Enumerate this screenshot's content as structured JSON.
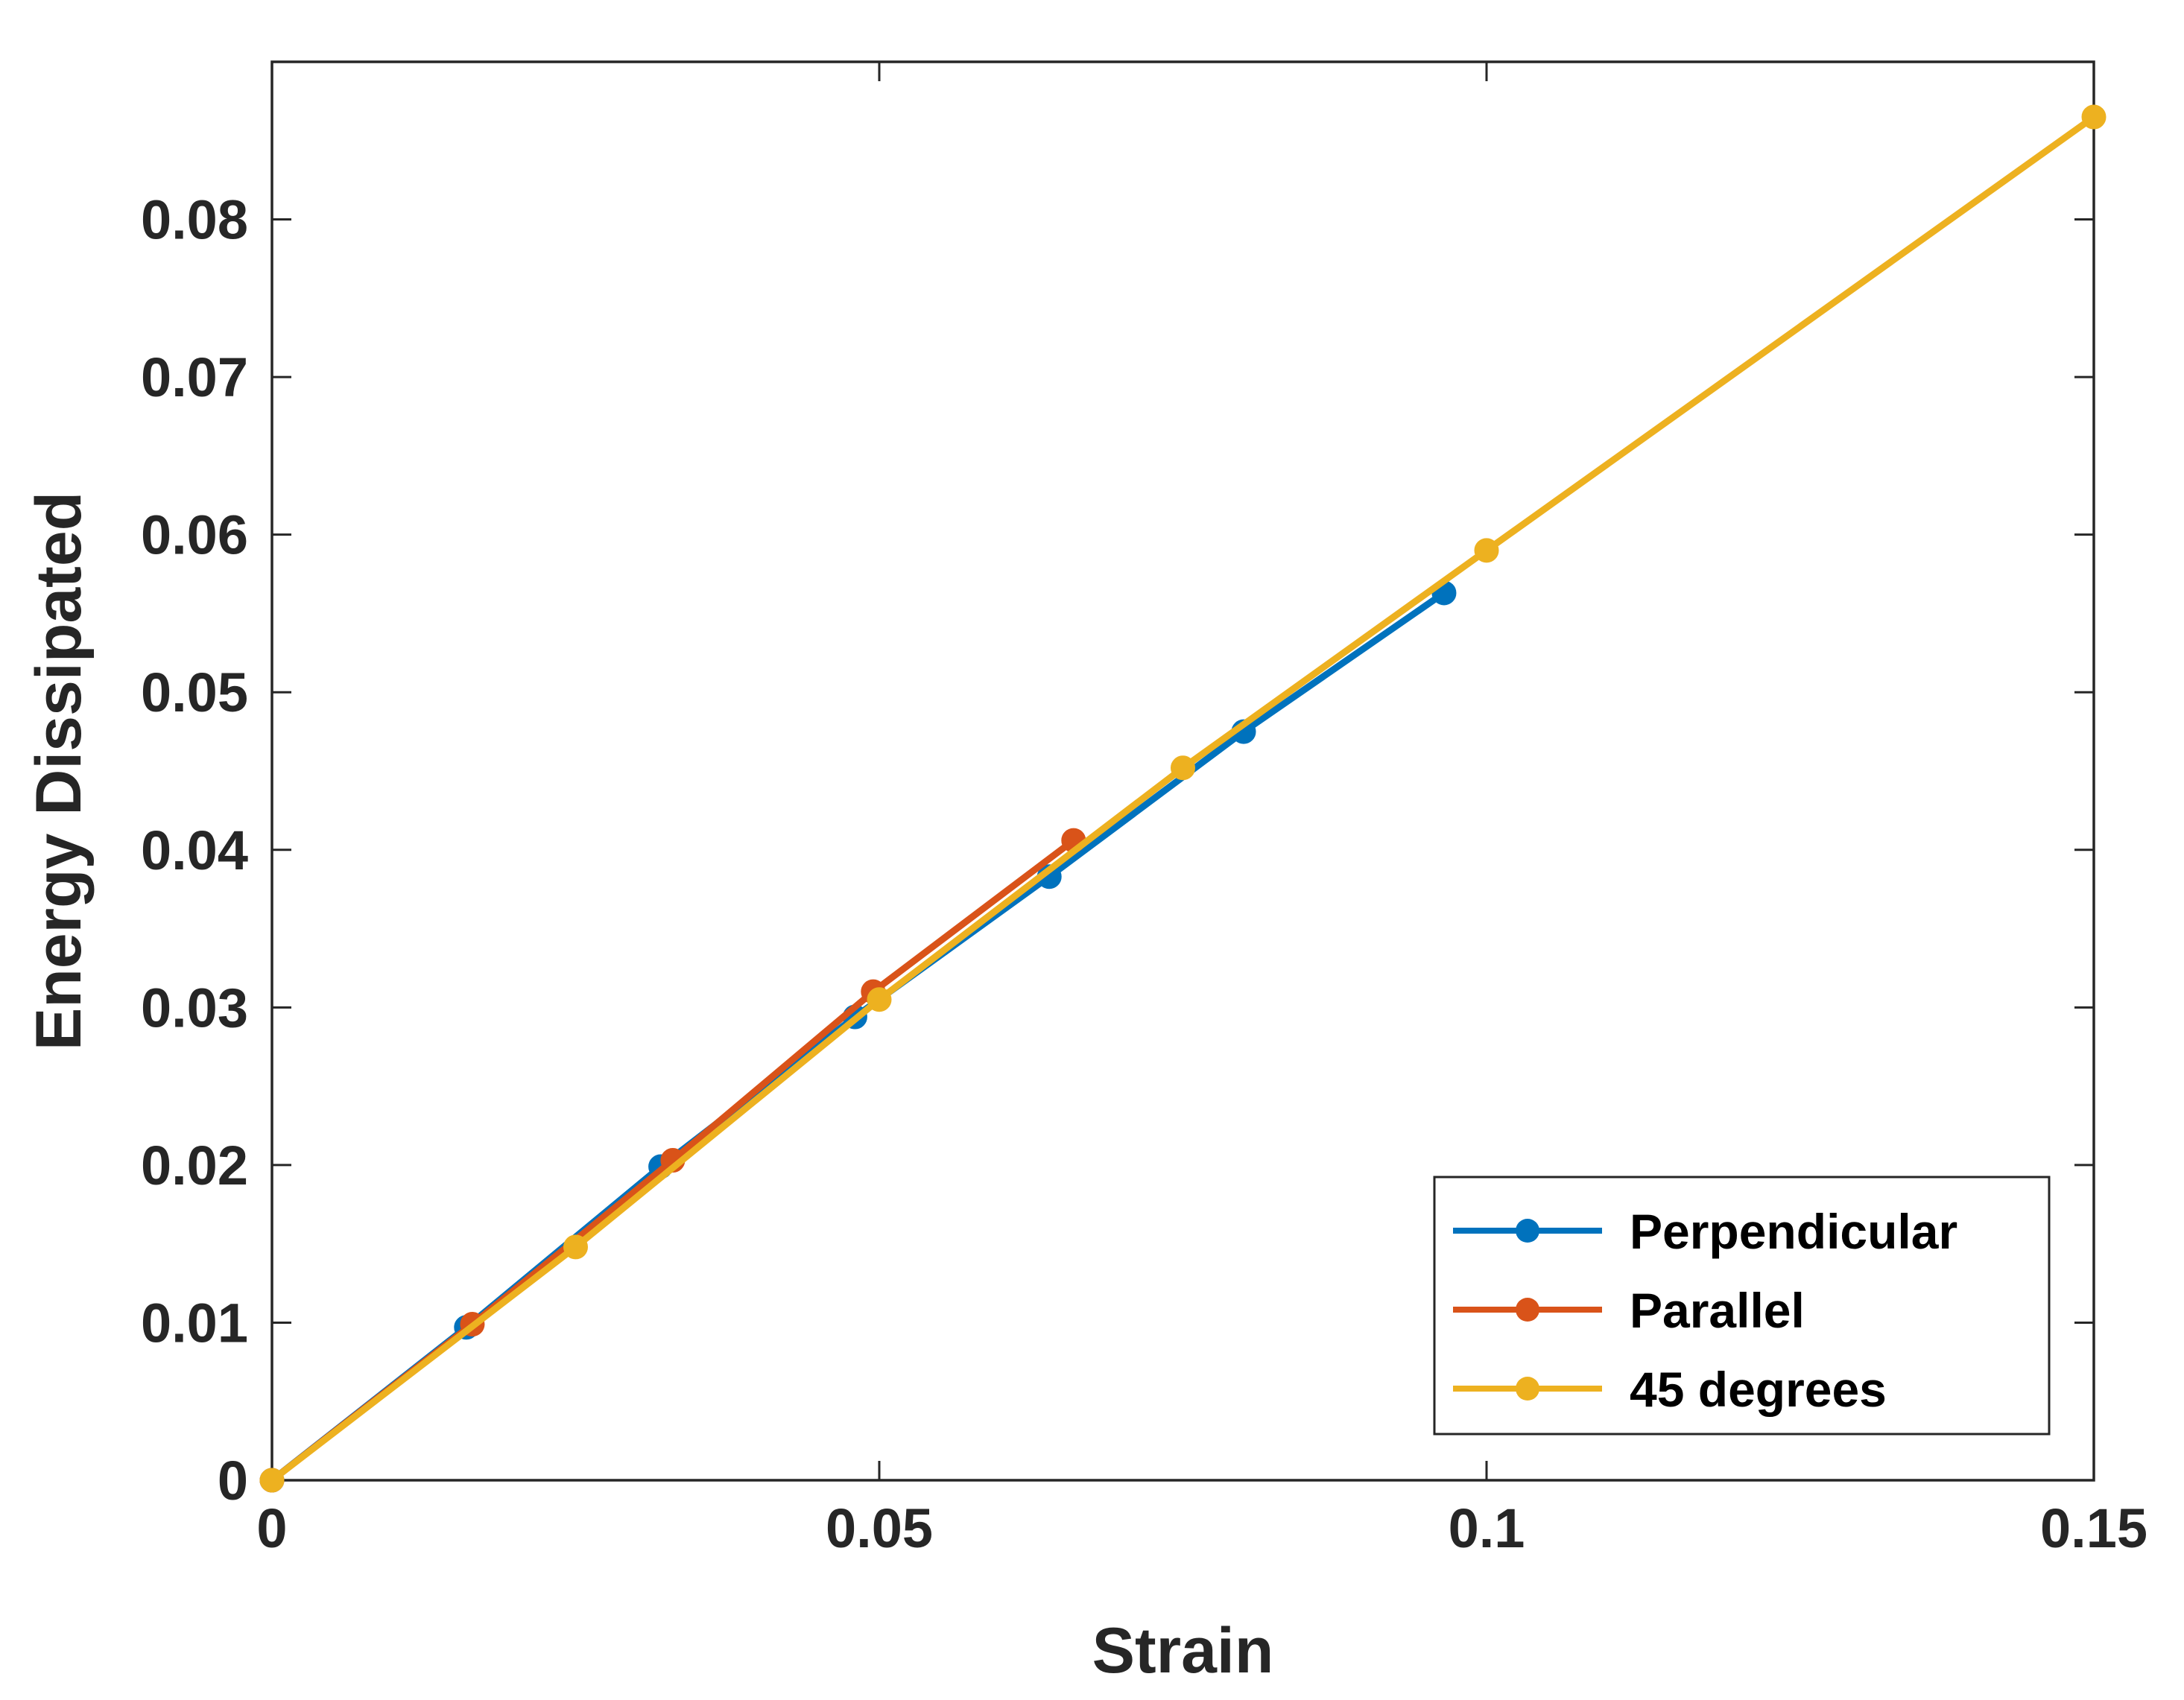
{
  "chart_data": {
    "type": "line",
    "title": "",
    "xlabel": "Strain",
    "ylabel": "Energy Dissipated",
    "xlim": [
      0,
      0.15
    ],
    "ylim": [
      0,
      0.09
    ],
    "xticks": [
      0,
      0.05,
      0.1,
      0.15
    ],
    "xtick_labels": [
      "0",
      "0.05",
      "0.1",
      "0.15"
    ],
    "yticks": [
      0,
      0.01,
      0.02,
      0.03,
      0.04,
      0.05,
      0.06,
      0.07,
      0.08
    ],
    "ytick_labels": [
      "0",
      "0.01",
      "0.02",
      "0.03",
      "0.04",
      "0.05",
      "0.06",
      "0.07",
      "0.08"
    ],
    "grid": false,
    "legend_position": "bottom-right",
    "series": [
      {
        "name": "Perpendicular",
        "color": "#0072BD",
        "marker": "circle",
        "x": [
          0,
          0.016,
          0.032,
          0.048,
          0.064,
          0.08,
          0.0965
        ],
        "y": [
          0,
          0.0097,
          0.0199,
          0.0294,
          0.0383,
          0.0475,
          0.0563
        ]
      },
      {
        "name": "Parallel",
        "color": "#D95319",
        "marker": "circle",
        "x": [
          0,
          0.0165,
          0.033,
          0.0495,
          0.066
        ],
        "y": [
          0,
          0.0099,
          0.0203,
          0.031,
          0.0406
        ]
      },
      {
        "name": "45 degrees",
        "color": "#EDB120",
        "marker": "circle",
        "x": [
          0,
          0.025,
          0.05,
          0.075,
          0.1,
          0.15
        ],
        "y": [
          0,
          0.0148,
          0.0305,
          0.0452,
          0.059,
          0.0865
        ]
      }
    ]
  }
}
